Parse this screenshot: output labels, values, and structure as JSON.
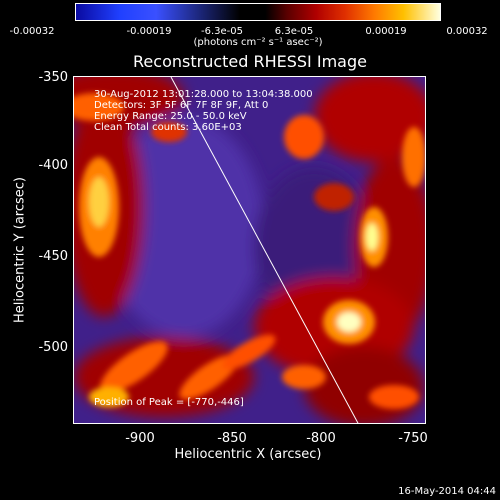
{
  "colorbar": {
    "ticks": [
      "-0.00032",
      "-0.00019",
      "-6.3e-05",
      "6.3e-05",
      "0.00019",
      "0.00032"
    ],
    "unit": "(photons cm⁻² s⁻¹ asec⁻²)"
  },
  "title": "Reconstructed RHESSI Image",
  "info": {
    "time": "30-Aug-2012 13:01:28.000 to 13:04:38.000",
    "detectors": "Detectors: 3F 5F 6F 7F 8F 9F, Att 0",
    "energy": "Energy Range: 25.0 - 50.0 keV",
    "clean": "Clean     Total counts: 3.60E+03"
  },
  "peak": "Position of Peak = [-770,-446]",
  "axes": {
    "xlabel": "Heliocentric X (arcsec)",
    "ylabel": "Heliocentric Y (arcsec)",
    "xticks": [
      "-900",
      "-850",
      "-800",
      "-750"
    ],
    "yticks": [
      "-350",
      "-400",
      "-450",
      "-500"
    ]
  },
  "timestamp": "16-May-2014 04:44",
  "colors": {
    "background": "#000000",
    "limb": "#ffffff"
  }
}
